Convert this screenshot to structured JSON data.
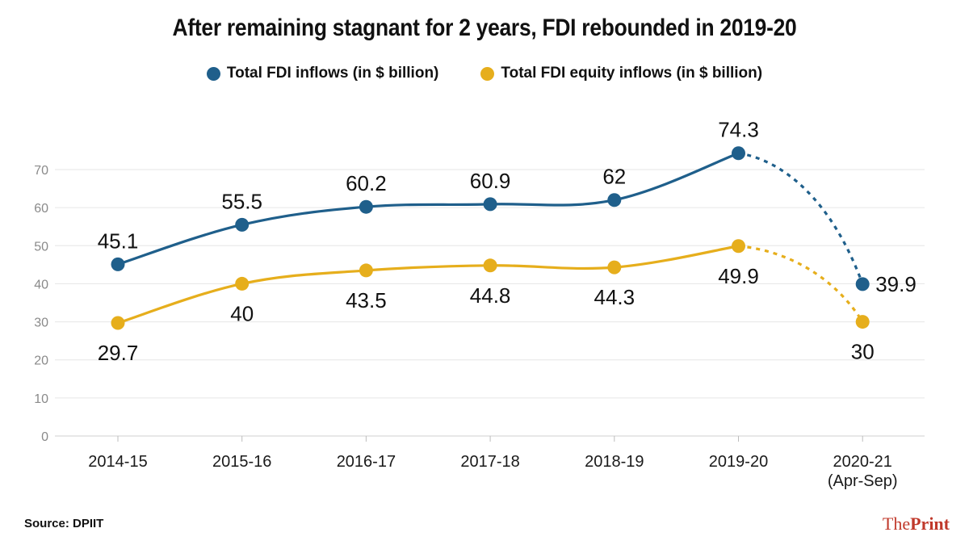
{
  "chart_data": {
    "type": "line",
    "title": "After remaining stagnant for 2 years, FDI rebounded in 2019-20",
    "categories": [
      "2014-15",
      "2015-16",
      "2016-17",
      "2017-18",
      "2018-19",
      "2019-20",
      "2020-21\n(Apr-Sep)"
    ],
    "ylim": [
      0,
      70
    ],
    "yticks": [
      0,
      10,
      20,
      30,
      40,
      50,
      60,
      70
    ],
    "grid": true,
    "xlabel": "",
    "ylabel": "",
    "legend_position": "top-center",
    "series": [
      {
        "name": "Total FDI inflows (in $ billion)",
        "color": "#1f5f8b",
        "values": [
          45.1,
          55.5,
          60.2,
          60.9,
          62,
          74.3,
          39.9
        ],
        "labels": [
          "45.1",
          "55.5",
          "60.2",
          "60.9",
          "62",
          "74.3",
          "39.9"
        ],
        "label_side": [
          "above",
          "above",
          "above",
          "above",
          "above",
          "above",
          "right"
        ],
        "dashed_last_segment": true
      },
      {
        "name": "Total FDI  equity inflows (in $ billion)",
        "color": "#e6ae1c",
        "values": [
          29.7,
          40,
          43.5,
          44.8,
          44.3,
          49.9,
          30
        ],
        "labels": [
          "29.7",
          "40",
          "43.5",
          "44.8",
          "44.3",
          "49.9",
          "30"
        ],
        "label_side": [
          "below",
          "below",
          "below",
          "below",
          "below",
          "below",
          "below"
        ],
        "dashed_last_segment": true
      }
    ]
  },
  "footer": {
    "source": "Source: DPIIT",
    "brand_a": "The",
    "brand_b": "Print"
  }
}
